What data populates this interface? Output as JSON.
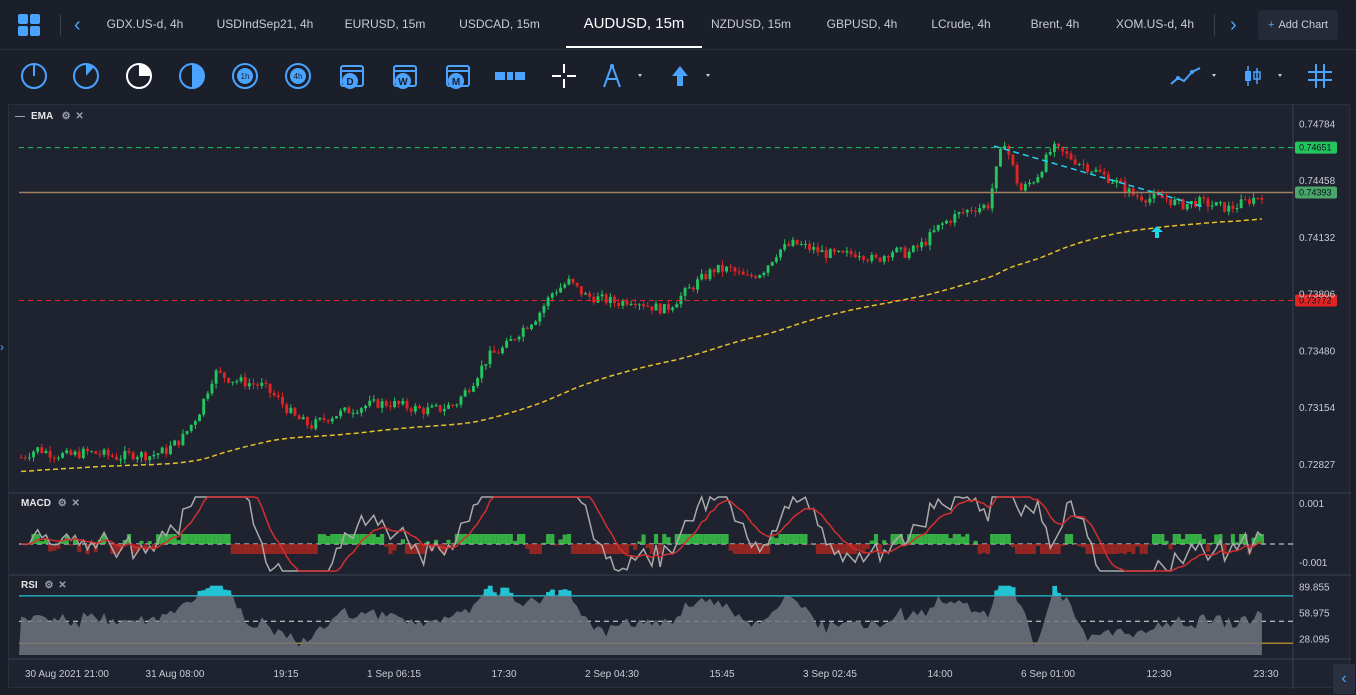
{
  "tabs": [
    {
      "label": "GDX.US-d, 4h"
    },
    {
      "label": "USDIndSep21, 4h"
    },
    {
      "label": "EURUSD, 15m"
    },
    {
      "label": "USDCAD, 15m"
    },
    {
      "label": "AUDUSD, 15m"
    },
    {
      "label": "NZDUSD, 15m"
    },
    {
      "label": "GBPUSD, 4h"
    },
    {
      "label": "LCrude, 4h"
    },
    {
      "label": "Brent, 4h"
    },
    {
      "label": "XOM.US-d, 4h"
    }
  ],
  "active_tab": "AUDUSD, 15m",
  "add_chart_label": "Add Chart",
  "toolbar": {
    "tools": [
      "timeframe-1m-icon",
      "timeframe-5m-icon",
      "timeframe-15m-icon",
      "timeframe-30m-icon",
      "timeframe-1h-icon",
      "timeframe-4h-icon",
      "timeframe-d-icon",
      "timeframe-w-icon",
      "timeframe-m-icon",
      "ruler-icon",
      "crosshair-icon",
      "drawing-tool-icon",
      "arrow-up-icon",
      "indicators-icon",
      "chart-type-icon",
      "grid-icon"
    ],
    "timeframe_letters": {
      "h1": "1h",
      "h4": "4h",
      "d": "D",
      "w": "W",
      "m": "M"
    }
  },
  "indicators": {
    "ema_label": "EMA",
    "macd_label": "MACD",
    "rsi_label": "RSI"
  },
  "price_axis": {
    "ticks": [
      "0.74784",
      "0.74458",
      "0.74132",
      "0.73806",
      "0.73480",
      "0.73154",
      "0.72827"
    ],
    "tags": [
      {
        "value": "0.74651",
        "color": "#22c55e"
      },
      {
        "value": "0.74393",
        "color": "#4aa66a"
      },
      {
        "value": "0.73772",
        "color": "#e02424"
      }
    ]
  },
  "macd_axis": {
    "ticks": [
      "0.001",
      "-0.001"
    ]
  },
  "rsi_axis": {
    "ticks": [
      "89.855",
      "58.975",
      "28.095"
    ]
  },
  "time_axis": {
    "labels": [
      "30 Aug 2021 21:00",
      "31 Aug 08:00",
      "19:15",
      "1 Sep 06:15",
      "17:30",
      "2 Sep 04:30",
      "15:45",
      "3 Sep 02:45",
      "14:00",
      "6 Sep 01:00",
      "12:30",
      "23:30"
    ]
  },
  "colors": {
    "accent": "#4aa3ff",
    "up_candle": "#22c55e",
    "down_candle": "#e02424",
    "ema_line": "#e6c229",
    "trendline": "#22d3ee",
    "support_line": "#a08060"
  },
  "chart_data": {
    "type": "candlestick",
    "symbol": "AUDUSD, 15m",
    "ylim": [
      0.727,
      0.7485
    ],
    "levels": [
      {
        "value": 0.74651,
        "style": "dashed",
        "color": "#22c55e"
      },
      {
        "value": 0.74393,
        "style": "solid",
        "color": "#a08060"
      },
      {
        "value": 0.73772,
        "style": "dashed",
        "color": "#e02424"
      }
    ],
    "close_path": [
      0.7287,
      0.7292,
      0.7289,
      0.7288,
      0.729,
      0.7289,
      0.7287,
      0.7289,
      0.7288,
      0.7291,
      0.7298,
      0.7312,
      0.7336,
      0.7332,
      0.733,
      0.7328,
      0.732,
      0.731,
      0.7305,
      0.731,
      0.7313,
      0.7316,
      0.7318,
      0.7318,
      0.7316,
      0.7314,
      0.7315,
      0.7318,
      0.733,
      0.7345,
      0.735,
      0.736,
      0.7368,
      0.7382,
      0.7388,
      0.738,
      0.7378,
      0.7376,
      0.7378,
      0.7374,
      0.7372,
      0.738,
      0.7388,
      0.7395,
      0.7395,
      0.739,
      0.7394,
      0.7406,
      0.741,
      0.7407,
      0.7404,
      0.7403,
      0.7405,
      0.74,
      0.7406,
      0.7404,
      0.741,
      0.742,
      0.7426,
      0.743,
      0.7432,
      0.747,
      0.744,
      0.7448,
      0.7465,
      0.746,
      0.7455,
      0.745,
      0.7445,
      0.7438,
      0.7436,
      0.7436,
      0.7432,
      0.7434,
      0.7432,
      0.743,
      0.7434,
      0.7438
    ]
  }
}
